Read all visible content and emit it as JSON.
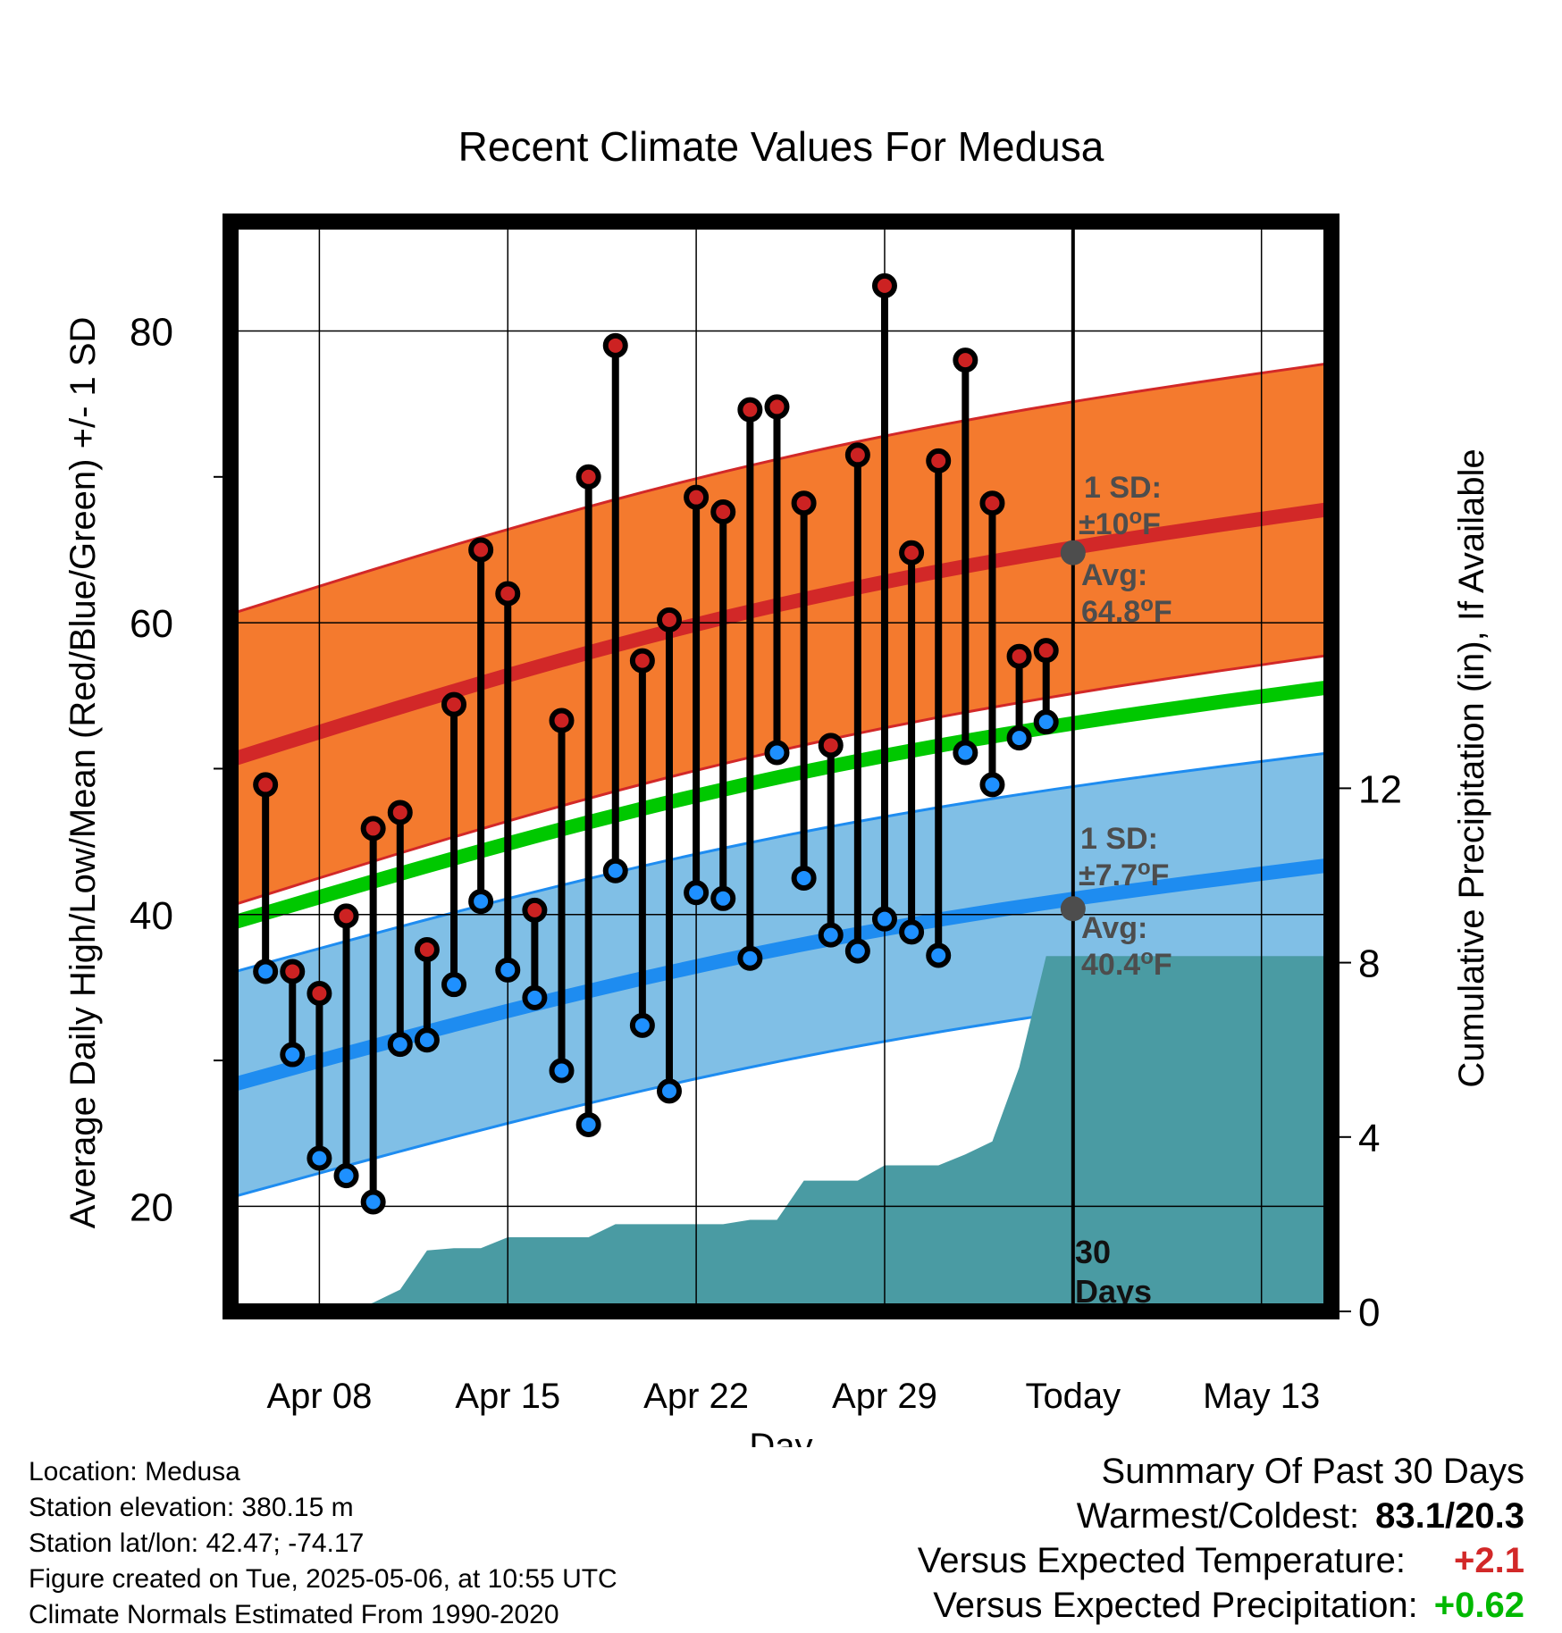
{
  "chart_data": {
    "type": "line",
    "title": "Recent Climate Values For Medusa",
    "xlabel": "Day",
    "ylabel": "Average Daily High/Low/Mean (Red/Blue/Green) +/- 1 SD",
    "y2label": "Cumulative Precipitation (in), If Available",
    "x_ticks": [
      {
        "day": 8,
        "label": "Apr 08"
      },
      {
        "day": 15,
        "label": "Apr 15"
      },
      {
        "day": 22,
        "label": "Apr 22"
      },
      {
        "day": 29,
        "label": "Apr 29"
      },
      {
        "day": 36,
        "label": "Today"
      },
      {
        "day": 43,
        "label": "May 13"
      }
    ],
    "xlim": [
      4.7,
      45.6
    ],
    "ylim": [
      12.8,
      87.5
    ],
    "y_ticks": [
      20,
      40,
      60,
      80
    ],
    "y2lim": [
      0,
      25
    ],
    "y2_ticks": [
      0,
      4,
      8,
      12
    ],
    "today_day": 36,
    "days": [
      6,
      7,
      8,
      9,
      10,
      11,
      12,
      13,
      14,
      15,
      16,
      17,
      18,
      19,
      20,
      21,
      22,
      23,
      24,
      25,
      26,
      27,
      28,
      29,
      30,
      31,
      32,
      33,
      34,
      35
    ],
    "highs": [
      48.9,
      36.1,
      34.6,
      39.9,
      45.9,
      47.0,
      37.6,
      54.4,
      65.0,
      62.0,
      40.3,
      53.3,
      70.0,
      79.0,
      57.4,
      60.2,
      68.6,
      67.6,
      74.6,
      74.8,
      68.2,
      51.6,
      71.5,
      83.1,
      64.8,
      71.1,
      78.0,
      68.2,
      57.7,
      58.1
    ],
    "lows": [
      36.1,
      30.4,
      23.3,
      22.1,
      20.3,
      31.1,
      31.4,
      35.2,
      40.9,
      36.2,
      34.3,
      29.3,
      25.6,
      43.0,
      32.4,
      27.9,
      41.5,
      41.1,
      37.0,
      51.1,
      42.5,
      38.6,
      37.5,
      39.7,
      38.8,
      37.2,
      51.1,
      48.9,
      52.1,
      53.2
    ],
    "normal": {
      "days": [
        4.7,
        45.6
      ],
      "high_avg": [
        50.6,
        67.8
      ],
      "low_avg": [
        28.3,
        43.4
      ],
      "mean": [
        39.4,
        55.6
      ],
      "high_sd": 10,
      "low_sd": 7.7
    },
    "precip_cumulative": {
      "days": [
        4.7,
        6,
        7,
        8,
        9,
        10,
        11,
        12,
        13,
        14,
        15,
        16,
        17,
        18,
        19,
        20,
        21,
        22,
        23,
        24,
        25,
        26,
        27,
        28,
        29,
        30,
        31,
        32,
        33,
        34,
        35,
        36,
        45.6
      ],
      "values": [
        0,
        0,
        0,
        0,
        0,
        0.2,
        0.5,
        1.4,
        1.45,
        1.45,
        1.7,
        1.7,
        1.7,
        1.7,
        2.0,
        2.0,
        2.0,
        2.0,
        2.0,
        2.1,
        2.1,
        3.0,
        3.0,
        3.0,
        3.35,
        3.35,
        3.35,
        3.6,
        3.9,
        5.6,
        8.15,
        8.15,
        8.15
      ]
    },
    "annotations": {
      "high_sd_label": "1 SD:",
      "high_sd_value": "±10",
      "high_avg_label": "Avg:",
      "high_avg_value": "64.8",
      "low_sd_label": "1 SD:",
      "low_sd_value": "±7.7",
      "low_avg_label": "Avg:",
      "low_avg_value": "40.4",
      "unit_sup": "o",
      "unit": "F",
      "days_count": "30",
      "days_word": "Days"
    },
    "colors": {
      "high_band": "#f47a2e",
      "high_line": "#d22828",
      "low_band": "#80bfe6",
      "low_line": "#1e8cf0",
      "mean_line": "#00c800",
      "precip": "#4a9ba3",
      "high_dot": "#cc2222",
      "low_dot": "#1e90ff",
      "annotation": "#4d4d4d"
    }
  },
  "info": {
    "location": "Location: Medusa",
    "elevation": "Station elevation: 380.15 m",
    "latlon": "Station lat/lon: 42.47; -74.17",
    "created": "Figure created on Tue, 2025-05-06, at 10:55 UTC",
    "normals": "Climate Normals Estimated From 1990-2020"
  },
  "summary": {
    "title": "Summary Of Past 30 Days",
    "warm_cold_label": "Warmest/Coldest:",
    "warm_cold_value": "83.1/20.3",
    "temp_label": "Versus Expected Temperature:",
    "temp_value": "+2.1",
    "temp_color": "#d22828",
    "precip_label": "Versus Expected Precipitation:",
    "precip_value": "+0.62",
    "precip_color": "#00b800"
  }
}
